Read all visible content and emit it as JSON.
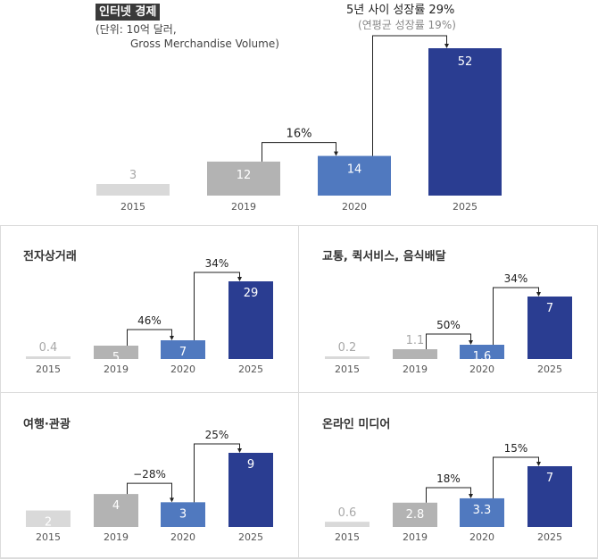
{
  "header": {
    "title": "인터넷 경제",
    "unit_line1": "(단위: 10억 달러,",
    "unit_line2": "Gross Merchandise Volume)",
    "growth_main": "5년 사이 성장률 29%",
    "growth_sub": "(연평균 성장률 19%)"
  },
  "colors": {
    "y2015": "#d9d9d9",
    "y2019": "#b3b3b3",
    "y2020": "#5079bf",
    "y2025": "#2a3d91",
    "label_light": "#a8a8a8",
    "label_on_bar": "#ffffff",
    "arrow": "#222222"
  },
  "chart_data": [
    {
      "type": "bar",
      "title": "인터넷 경제",
      "categories": [
        "2015",
        "2019",
        "2020",
        "2025"
      ],
      "values": [
        3,
        12,
        14,
        52
      ],
      "value_labels": [
        "3",
        "12",
        "14",
        "52"
      ],
      "annotations": [
        {
          "from": "2019",
          "to": "2020",
          "label": "16%"
        },
        {
          "from": "2020",
          "to": "2025",
          "label": "5년 사이 성장률 29%"
        }
      ],
      "ylim": [
        0,
        52
      ]
    },
    {
      "type": "bar",
      "title": "전자상거래",
      "categories": [
        "2015",
        "2019",
        "2020",
        "2025"
      ],
      "values": [
        0.4,
        5,
        7,
        29
      ],
      "value_labels": [
        "0.4",
        "5",
        "7",
        "29"
      ],
      "annotations": [
        {
          "from": "2019",
          "to": "2020",
          "label": "46%"
        },
        {
          "from": "2020",
          "to": "2025",
          "label": "34%"
        }
      ],
      "ylim": [
        0,
        29
      ]
    },
    {
      "type": "bar",
      "title": "교통, 퀵서비스, 음식배달",
      "categories": [
        "2015",
        "2019",
        "2020",
        "2025"
      ],
      "values": [
        0.2,
        1.1,
        1.6,
        7
      ],
      "value_labels": [
        "0.2",
        "1.1",
        "1.6",
        "7"
      ],
      "annotations": [
        {
          "from": "2019",
          "to": "2020",
          "label": "50%"
        },
        {
          "from": "2020",
          "to": "2025",
          "label": "34%"
        }
      ],
      "ylim": [
        0,
        7
      ]
    },
    {
      "type": "bar",
      "title": "여행·관광",
      "categories": [
        "2015",
        "2019",
        "2020",
        "2025"
      ],
      "values": [
        2,
        4,
        3,
        9
      ],
      "value_labels": [
        "2",
        "4",
        "3",
        "9"
      ],
      "annotations": [
        {
          "from": "2019",
          "to": "2020",
          "label": "−28%"
        },
        {
          "from": "2020",
          "to": "2025",
          "label": "25%"
        }
      ],
      "ylim": [
        0,
        9
      ]
    },
    {
      "type": "bar",
      "title": "온라인 미디어",
      "categories": [
        "2015",
        "2019",
        "2020",
        "2025"
      ],
      "values": [
        0.6,
        2.8,
        3.3,
        7
      ],
      "value_labels": [
        "0.6",
        "2.8",
        "3.3",
        "7"
      ],
      "annotations": [
        {
          "from": "2019",
          "to": "2020",
          "label": "18%"
        },
        {
          "from": "2020",
          "to": "2025",
          "label": "15%"
        }
      ],
      "ylim": [
        0,
        7
      ]
    }
  ]
}
